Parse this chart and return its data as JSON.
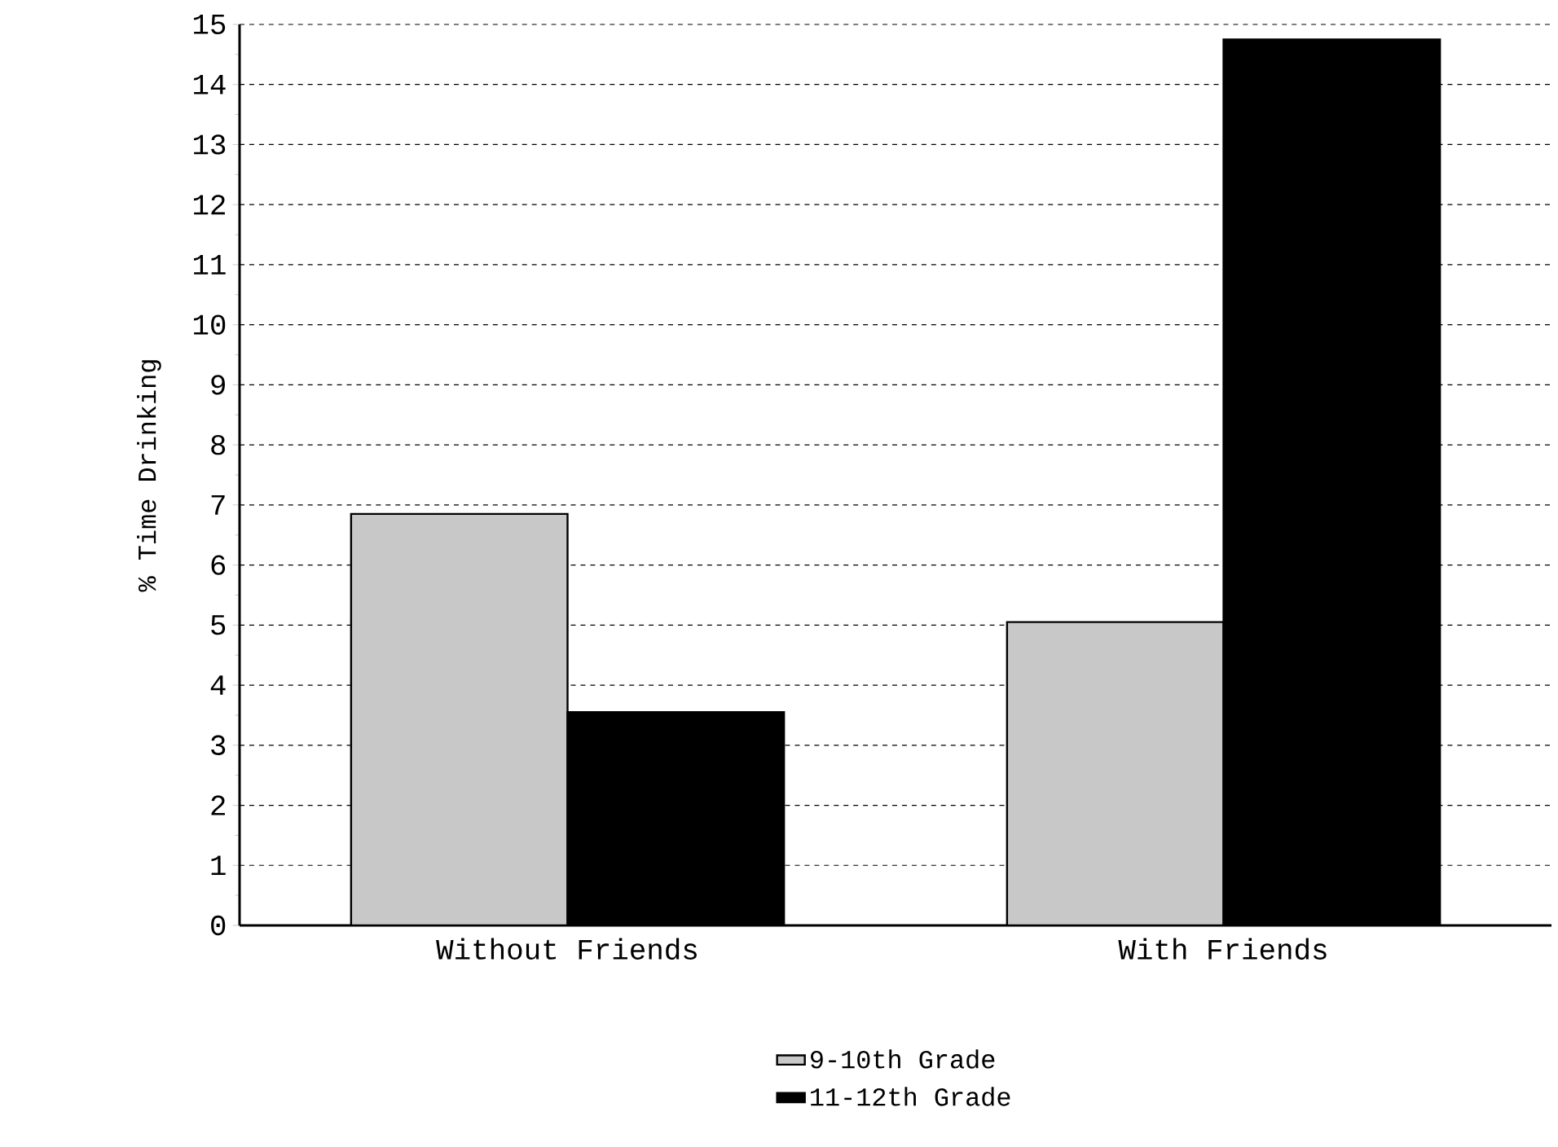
{
  "chart_data": {
    "type": "bar",
    "ylabel": "% Time Drinking",
    "categories": [
      "Without Friends",
      "With Friends"
    ],
    "series": [
      {
        "name": "9-10th Grade",
        "color": "#c8c8c8",
        "values": [
          6.85,
          5.05
        ]
      },
      {
        "name": "11-12th Grade",
        "color": "#000000",
        "values": [
          3.55,
          14.75
        ]
      }
    ],
    "ylim": [
      0,
      15
    ],
    "yticks": [
      0,
      1,
      2,
      3,
      4,
      5,
      6,
      7,
      8,
      9,
      10,
      11,
      12,
      13,
      14,
      15
    ],
    "grid": "y",
    "legend": "bottom"
  }
}
